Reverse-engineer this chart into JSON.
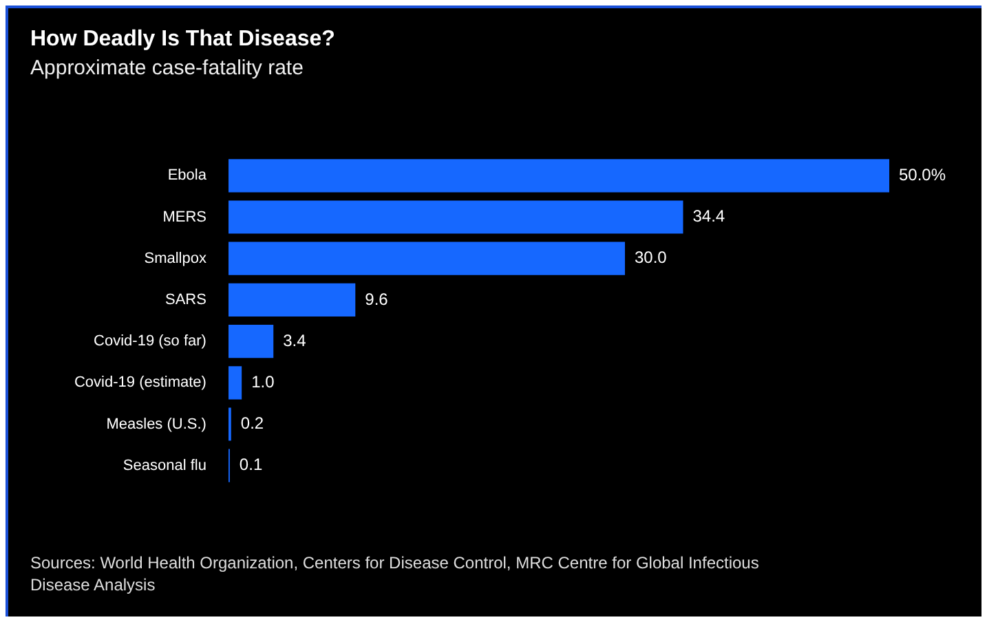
{
  "chart_data": {
    "type": "bar",
    "orientation": "horizontal",
    "title": "How Deadly Is That Disease?",
    "subtitle": "Approximate case-fatality rate",
    "categories": [
      "Ebola",
      "MERS",
      "Smallpox",
      "SARS",
      "Covid-19 (so far)",
      "Covid-19 (estimate)",
      "Measles (U.S.)",
      "Seasonal flu"
    ],
    "values": [
      50.0,
      34.4,
      30.0,
      9.6,
      3.4,
      1.0,
      0.2,
      0.1
    ],
    "value_labels": [
      "50.0%",
      "34.4",
      "30.0",
      "9.6",
      "3.4",
      "1.0",
      "0.2",
      "0.1"
    ],
    "color": "#1668ff",
    "tick_labels": "y",
    "annotations": [
      "Sources: World Health Organization, Centers for Disease Control, MRC Centre for Global Infectious Disease Analysis"
    ]
  }
}
